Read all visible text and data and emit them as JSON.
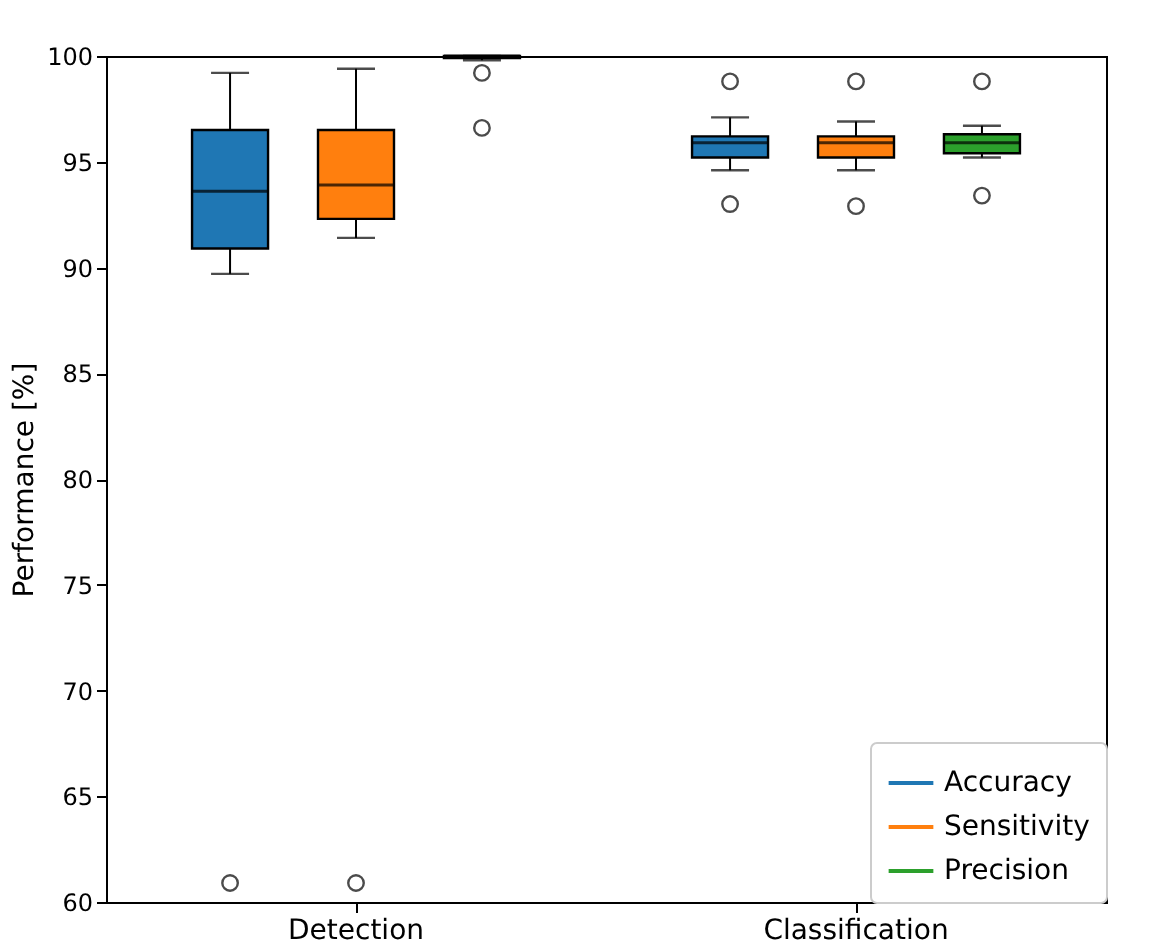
{
  "chart_data": {
    "type": "box",
    "ylabel": "Performance [%]",
    "categories": [
      "Detection",
      "Classification"
    ],
    "ylim": [
      60,
      100
    ],
    "yticks": [
      60,
      65,
      70,
      75,
      80,
      85,
      90,
      95,
      100
    ],
    "grid": false,
    "legend": "bottom right",
    "series": [
      {
        "name": "Accuracy",
        "color": "#1f77b4",
        "boxes": [
          {
            "low": 89.7,
            "q1": 90.9,
            "median": 93.6,
            "q3": 96.5,
            "high": 99.2,
            "outliers": [
              60.9
            ]
          },
          {
            "low": 94.6,
            "q1": 95.2,
            "median": 95.9,
            "q3": 96.2,
            "high": 97.1,
            "outliers": [
              98.8,
              93.0
            ]
          }
        ]
      },
      {
        "name": "Sensitivity",
        "color": "#ff7f0e",
        "boxes": [
          {
            "low": 91.4,
            "q1": 92.3,
            "median": 93.9,
            "q3": 96.5,
            "high": 99.4,
            "outliers": [
              60.9
            ]
          },
          {
            "low": 94.6,
            "q1": 95.2,
            "median": 95.9,
            "q3": 96.2,
            "high": 96.9,
            "outliers": [
              98.8,
              92.9
            ]
          }
        ]
      },
      {
        "name": "Precision",
        "color": "#2ca02c",
        "boxes": [
          {
            "low": 99.8,
            "q1": 99.9,
            "median": 100,
            "q3": 100,
            "high": 100,
            "outliers": [
              99.2,
              96.6
            ]
          },
          {
            "low": 95.2,
            "q1": 95.4,
            "median": 95.9,
            "q3": 96.3,
            "high": 96.7,
            "outliers": [
              98.8,
              93.4
            ]
          }
        ]
      }
    ]
  }
}
